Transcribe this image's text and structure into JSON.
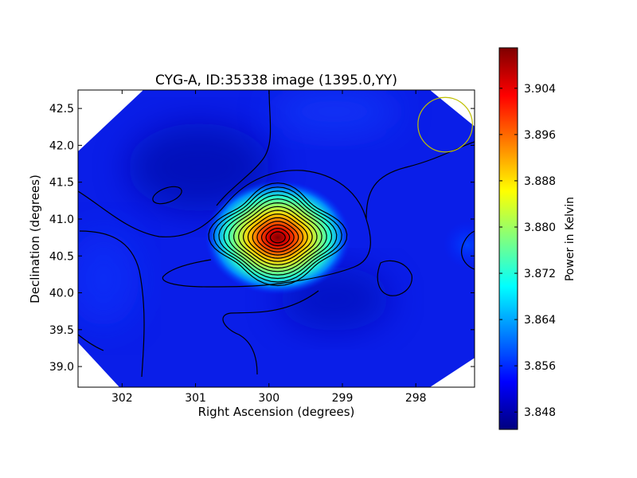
{
  "chart_data": {
    "type": "heatmap",
    "title": "CYG-A, ID:35338 image (1395.0,YY)",
    "xlabel": "Right Ascension (degrees)",
    "ylabel": "Declination (degrees)",
    "xlim": [
      302.6,
      297.2
    ],
    "ylim": [
      38.72,
      42.75
    ],
    "x_ticks": [
      302,
      301,
      300,
      299,
      298
    ],
    "x_tick_labels": [
      "302",
      "301",
      "300",
      "299",
      "298"
    ],
    "y_ticks": [
      39.0,
      39.5,
      40.0,
      40.5,
      41.0,
      41.5,
      42.0,
      42.5
    ],
    "y_tick_labels": [
      "39.0",
      "39.5",
      "40.0",
      "40.5",
      "41.0",
      "41.5",
      "42.0",
      "42.5"
    ],
    "colorbar": {
      "label": "Power in Kelvin",
      "range": [
        3.845,
        3.911
      ],
      "ticks": [
        3.848,
        3.856,
        3.864,
        3.872,
        3.88,
        3.888,
        3.896,
        3.904
      ],
      "tick_labels": [
        "3.848",
        "3.856",
        "3.864",
        "3.872",
        "3.880",
        "3.888",
        "3.896",
        "3.904"
      ],
      "colormap": "jet"
    },
    "background_level": 3.852,
    "sources": [
      {
        "ra": 299.88,
        "dec": 40.75,
        "peak": 3.91,
        "sigma_ra": 0.55,
        "sigma_dec": 0.38
      },
      {
        "ra": 297.3,
        "dec": 40.65,
        "peak": 3.857,
        "sigma_ra": 0.25,
        "sigma_dec": 0.25
      }
    ],
    "contour_count": 14,
    "beam": {
      "ra": 297.6,
      "dec": 42.28,
      "radius_deg": 0.37,
      "color": "#bfbf00"
    }
  }
}
